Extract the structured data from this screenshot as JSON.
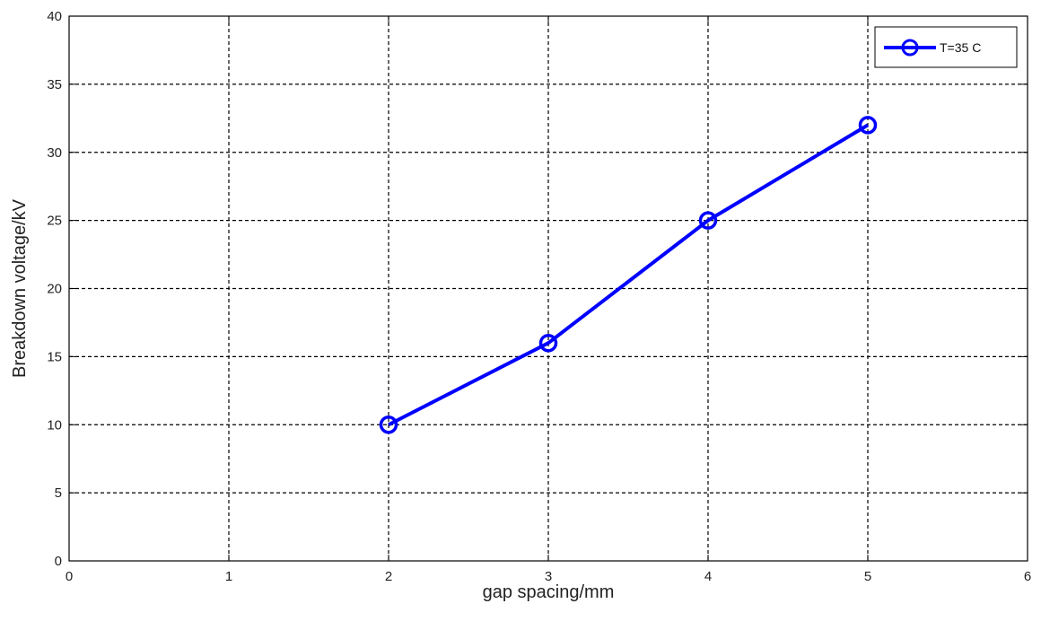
{
  "chart_data": {
    "type": "line",
    "title": "",
    "xlabel": "gap spacing/mm",
    "ylabel": "Breakdown voltage/kV",
    "xlim": [
      0,
      6
    ],
    "ylim": [
      0,
      40
    ],
    "xticks": [
      0,
      1,
      2,
      3,
      4,
      5,
      6
    ],
    "yticks": [
      0,
      5,
      10,
      15,
      20,
      25,
      30,
      35,
      40
    ],
    "grid": true,
    "legend_position": "top-right",
    "series": [
      {
        "name": "T=35 C",
        "color": "#0000ff",
        "marker": "circle",
        "x": [
          2,
          3,
          4,
          5
        ],
        "y": [
          10,
          16,
          25,
          32
        ]
      }
    ]
  }
}
